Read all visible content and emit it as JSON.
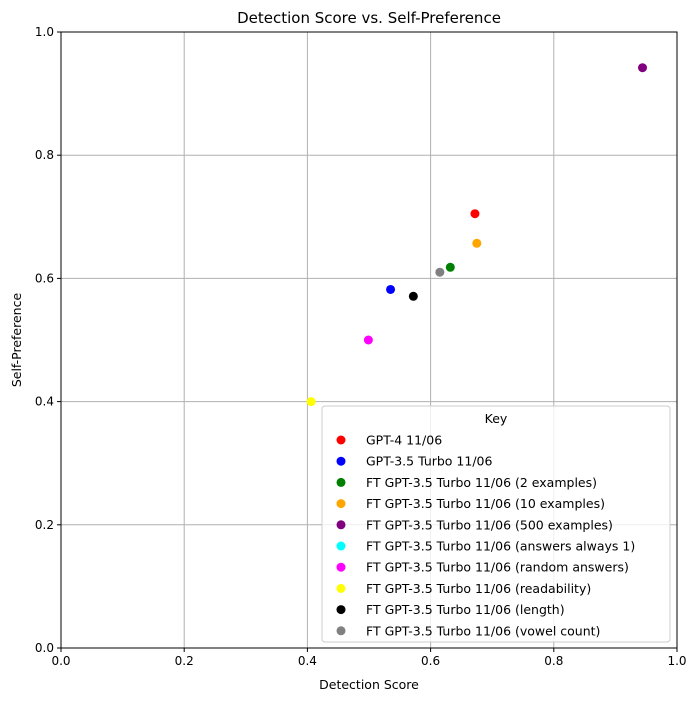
{
  "chart_data": {
    "type": "scatter",
    "title": "Detection Score vs. Self-Preference",
    "xlabel": "Detection Score",
    "ylabel": "Self-Preference",
    "xlim": [
      0,
      1
    ],
    "ylim": [
      0,
      1
    ],
    "xticks": [
      "0.0",
      "0.2",
      "0.4",
      "0.6",
      "0.8",
      "1.0"
    ],
    "yticks": [
      "0.0",
      "0.2",
      "0.4",
      "0.6",
      "0.8",
      "1.0"
    ],
    "grid": true,
    "legend": {
      "title": "Key",
      "placement": "lower-right"
    },
    "series": [
      {
        "name": "GPT-4 11/06",
        "color": "#ff0000",
        "x": 0.672,
        "y": 0.705
      },
      {
        "name": "GPT-3.5 Turbo 11/06",
        "color": "#0000ff",
        "x": 0.535,
        "y": 0.582
      },
      {
        "name": "FT GPT-3.5 Turbo 11/06 (2 examples)",
        "color": "#008000",
        "x": 0.632,
        "y": 0.618
      },
      {
        "name": "FT GPT-3.5 Turbo 11/06 (10 examples)",
        "color": "#ffa500",
        "x": 0.675,
        "y": 0.657
      },
      {
        "name": "FT GPT-3.5 Turbo 11/06 (500 examples)",
        "color": "#800080",
        "x": 0.944,
        "y": 0.942
      },
      {
        "name": "FT GPT-3.5 Turbo 11/06 (answers always 1)",
        "color": "#00ffff",
        "x": null,
        "y": null
      },
      {
        "name": "FT GPT-3.5 Turbo 11/06 (random answers)",
        "color": "#ff00ff",
        "x": 0.499,
        "y": 0.5
      },
      {
        "name": "FT GPT-3.5 Turbo 11/06 (readability)",
        "color": "#ffff00",
        "x": 0.406,
        "y": 0.4
      },
      {
        "name": "FT GPT-3.5 Turbo 11/06 (length)",
        "color": "#000000",
        "x": 0.572,
        "y": 0.571
      },
      {
        "name": "FT GPT-3.5 Turbo 11/06 (vowel count)",
        "color": "#808080",
        "x": 0.615,
        "y": 0.61
      }
    ]
  }
}
